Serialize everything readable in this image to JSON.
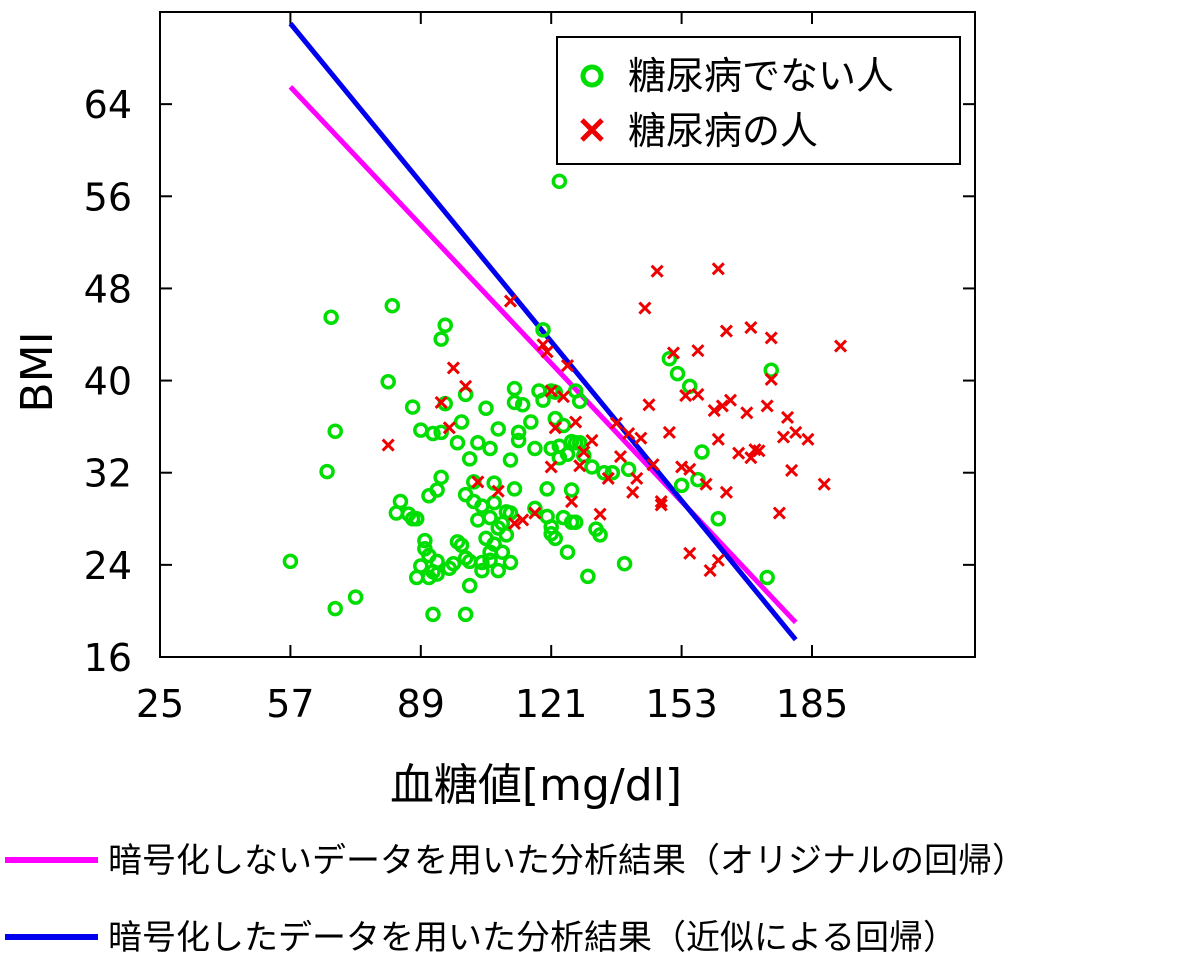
{
  "chart_data": {
    "type": "scatter",
    "xlabel": "血糖値[mg/dl]",
    "ylabel": "BMI",
    "xlim": [
      25,
      225
    ],
    "ylim": [
      16,
      72
    ],
    "xticks": [
      "25",
      "57",
      "89",
      "121",
      "153",
      "185"
    ],
    "yticks": [
      "16",
      "24",
      "32",
      "40",
      "48",
      "56",
      "64"
    ],
    "grid": false,
    "legend_position": "top-right",
    "series": [
      {
        "name": "糖尿病でない人",
        "marker": "circle",
        "color": "#00dd00",
        "points": [
          [
            57,
            24.3
          ],
          [
            66,
            32.1
          ],
          [
            67,
            45.5
          ],
          [
            68,
            35.6
          ],
          [
            68,
            20.2
          ],
          [
            73,
            21.2
          ],
          [
            81,
            39.9
          ],
          [
            82,
            46.5
          ],
          [
            83,
            28.5
          ],
          [
            84,
            29.5
          ],
          [
            86,
            28.4
          ],
          [
            87,
            28.0
          ],
          [
            88,
            28.0
          ],
          [
            87,
            37.7
          ],
          [
            88,
            22.9
          ],
          [
            89,
            35.7
          ],
          [
            89,
            23.9
          ],
          [
            90,
            25.4
          ],
          [
            90,
            26.1
          ],
          [
            91,
            30.0
          ],
          [
            91,
            24.8
          ],
          [
            92,
            35.4
          ],
          [
            91,
            22.9
          ],
          [
            92,
            19.7
          ],
          [
            92,
            23.4
          ],
          [
            93,
            24.3
          ],
          [
            93,
            30.5
          ],
          [
            94,
            31.6
          ],
          [
            93,
            23.2
          ],
          [
            94,
            35.5
          ],
          [
            94,
            43.6
          ],
          [
            95,
            44.8
          ],
          [
            95,
            38.0
          ],
          [
            96,
            23.7
          ],
          [
            97,
            24.1
          ],
          [
            98,
            34.6
          ],
          [
            98,
            26.0
          ],
          [
            99,
            25.7
          ],
          [
            99,
            36.4
          ],
          [
            100,
            30.1
          ],
          [
            100,
            38.8
          ],
          [
            100,
            24.6
          ],
          [
            100,
            19.7
          ],
          [
            101,
            33.2
          ],
          [
            101,
            24.3
          ],
          [
            101,
            22.2
          ],
          [
            102,
            31.2
          ],
          [
            102,
            29.5
          ],
          [
            103,
            27.9
          ],
          [
            103,
            34.6
          ],
          [
            104,
            24.2
          ],
          [
            104,
            29.1
          ],
          [
            104,
            23.5
          ],
          [
            105,
            26.3
          ],
          [
            105,
            37.6
          ],
          [
            106,
            25.1
          ],
          [
            106,
            28.1
          ],
          [
            106,
            24.4
          ],
          [
            106,
            34.1
          ],
          [
            107,
            25.8
          ],
          [
            107,
            29.4
          ],
          [
            107,
            31.1
          ],
          [
            108,
            27.2
          ],
          [
            108,
            35.8
          ],
          [
            108,
            23.5
          ],
          [
            109,
            25.1
          ],
          [
            109,
            27.6
          ],
          [
            110,
            28.6
          ],
          [
            110,
            26.6
          ],
          [
            111,
            33.1
          ],
          [
            111,
            28.5
          ],
          [
            111,
            24.2
          ],
          [
            112,
            39.3
          ],
          [
            112,
            38.1
          ],
          [
            112,
            30.6
          ],
          [
            113,
            35.5
          ],
          [
            113,
            34.8
          ],
          [
            114,
            37.9
          ],
          [
            116,
            36.4
          ],
          [
            117,
            28.9
          ],
          [
            117,
            34.1
          ],
          [
            118,
            39.1
          ],
          [
            119,
            44.4
          ],
          [
            119,
            38.3
          ],
          [
            120,
            30.6
          ],
          [
            120,
            28.2
          ],
          [
            121,
            39.1
          ],
          [
            121,
            27.3
          ],
          [
            121,
            34.1
          ],
          [
            121,
            26.7
          ],
          [
            122,
            39.0
          ],
          [
            122,
            36.7
          ],
          [
            122,
            26.3
          ],
          [
            123,
            33.3
          ],
          [
            123,
            57.3
          ],
          [
            123,
            34.3
          ],
          [
            124,
            36.1
          ],
          [
            124,
            28.1
          ],
          [
            125,
            33.6
          ],
          [
            125,
            25.1
          ],
          [
            126,
            34.7
          ],
          [
            126,
            30.5
          ],
          [
            126,
            27.7
          ],
          [
            127,
            39.1
          ],
          [
            127,
            34.6
          ],
          [
            127,
            27.7
          ],
          [
            128,
            34.6
          ],
          [
            128,
            38.2
          ],
          [
            129,
            33.5
          ],
          [
            130,
            23.0
          ],
          [
            131,
            32.5
          ],
          [
            132,
            27.1
          ],
          [
            133,
            26.6
          ],
          [
            134,
            32.0
          ],
          [
            136,
            32.0
          ],
          [
            139,
            24.1
          ],
          [
            140,
            32.3
          ],
          [
            150,
            41.9
          ],
          [
            152,
            40.6
          ],
          [
            153,
            30.9
          ],
          [
            155,
            39.5
          ],
          [
            157,
            31.4
          ],
          [
            158,
            33.8
          ],
          [
            162,
            28.0
          ],
          [
            174,
            22.9
          ],
          [
            175,
            40.9
          ]
        ]
      },
      {
        "name": "糖尿病の人",
        "marker": "x",
        "color": "#ee0000",
        "points": [
          [
            81,
            34.4
          ],
          [
            94,
            38.1
          ],
          [
            96,
            35.9
          ],
          [
            97,
            41.1
          ],
          [
            100,
            39.5
          ],
          [
            103,
            31.2
          ],
          [
            108,
            30.4
          ],
          [
            111,
            46.9
          ],
          [
            112,
            27.6
          ],
          [
            114,
            27.9
          ],
          [
            117,
            28.5
          ],
          [
            119,
            43.1
          ],
          [
            120,
            42.5
          ],
          [
            121,
            32.5
          ],
          [
            121,
            39.1
          ],
          [
            122,
            35.9
          ],
          [
            124,
            38.6
          ],
          [
            125,
            41.3
          ],
          [
            126,
            29.5
          ],
          [
            127,
            36.4
          ],
          [
            128,
            32.6
          ],
          [
            129,
            33.8
          ],
          [
            131,
            34.8
          ],
          [
            133,
            28.4
          ],
          [
            135,
            31.5
          ],
          [
            137,
            36.3
          ],
          [
            138,
            33.4
          ],
          [
            140,
            35.4
          ],
          [
            141,
            30.3
          ],
          [
            142,
            31.5
          ],
          [
            143,
            35.0
          ],
          [
            144,
            46.3
          ],
          [
            145,
            37.9
          ],
          [
            146,
            32.7
          ],
          [
            147,
            49.5
          ],
          [
            148,
            29.2
          ],
          [
            148,
            29.5
          ],
          [
            150,
            35.5
          ],
          [
            151,
            42.4
          ],
          [
            153,
            32.5
          ],
          [
            154,
            38.7
          ],
          [
            155,
            25.0
          ],
          [
            155,
            32.3
          ],
          [
            157,
            42.6
          ],
          [
            157,
            38.8
          ],
          [
            159,
            31.0
          ],
          [
            160,
            23.5
          ],
          [
            161,
            37.4
          ],
          [
            162,
            49.7
          ],
          [
            162,
            34.9
          ],
          [
            162,
            24.4
          ],
          [
            163,
            37.8
          ],
          [
            164,
            44.3
          ],
          [
            164,
            30.3
          ],
          [
            165,
            38.3
          ],
          [
            167,
            33.7
          ],
          [
            169,
            37.2
          ],
          [
            170,
            44.6
          ],
          [
            170,
            33.3
          ],
          [
            171,
            34.0
          ],
          [
            172,
            33.9
          ],
          [
            174,
            37.8
          ],
          [
            175,
            40.1
          ],
          [
            175,
            43.7
          ],
          [
            177,
            28.5
          ],
          [
            178,
            35.1
          ],
          [
            179,
            36.8
          ],
          [
            180,
            32.2
          ],
          [
            181,
            35.5
          ],
          [
            184,
            34.9
          ],
          [
            188,
            31.0
          ],
          [
            192,
            43.0
          ]
        ]
      }
    ],
    "lines": [
      {
        "name": "暗号化しないデータを用いた分析結果（オリジナルの回帰）",
        "color": "#ff00ff",
        "from": [
          57,
          65.5
        ],
        "to": [
          181,
          19.0
        ]
      },
      {
        "name": "暗号化したデータを用いた分析結果（近似による回帰）",
        "color": "#0000ee",
        "from": [
          57,
          71.0
        ],
        "to": [
          181,
          17.5
        ]
      }
    ]
  }
}
